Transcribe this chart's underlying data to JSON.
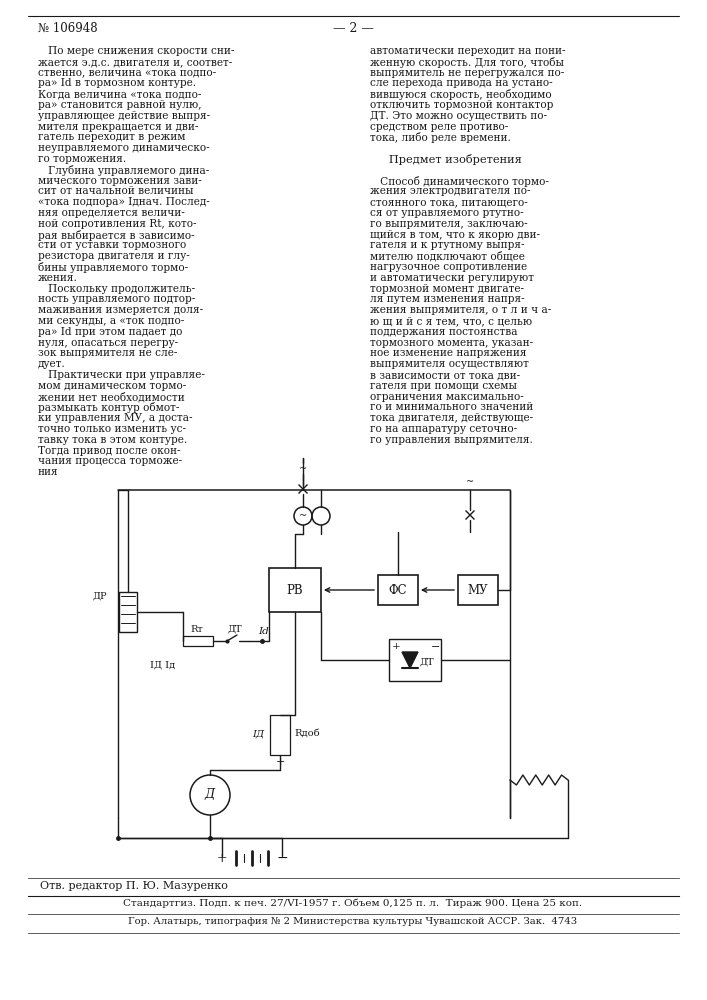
{
  "background_color": "#f5f5f0",
  "text_color": "#1a1a1a",
  "page_number": "№ 106948",
  "page_marker": "— 2 —",
  "col1_lines": [
    "   По мере снижения скорости сни-",
    "жается э.д.с. двигателя и, соответ-",
    "ственно, величина «тока подпо-",
    "ра» Id в тормозном контуре.",
    "Когда величина «тока подпо-",
    "ра» становится равной нулю,",
    "управляющее действие выпря-",
    "мителя прекращается и дви-",
    "гатель переходит в режим",
    "неуправляемого динамическо-",
    "го торможения.",
    "   Глубина управляемого дина-",
    "мического торможения зави-",
    "сит от начальной величины",
    "«тока подпора» Iднач. Послед-",
    "няя определяется величи-",
    "ной сопротивления Rt, кото-",
    "рая выбирается в зависимо-",
    "сти от уставки тормозного",
    "резистора двигателя и глу-",
    "бины управляемого тормо-",
    "жения.",
    "   Поскольку продолжитель-",
    "ность управляемого подтор-",
    "маживания измеряется доля-",
    "ми секунды, а «ток подпо-",
    "ра» Id при этом падает до",
    "нуля, опасаться перегру-",
    "зок выпрямителя не сле-",
    "дует.",
    "   Практически при управляе-",
    "мом динамическом тормо-",
    "жении нет необходимости",
    "размыкать контур обмот-",
    "ки управления МУ, а доста-",
    "точно только изменить ус-",
    "тавку тока в этом контуре.",
    "Тогда привод после окон-",
    "чания процесса торможе-",
    "ния"
  ],
  "col2_lines": [
    "автоматически переходит на пони-",
    "женную скорость. Для того, чтобы",
    "выпрямитель не перегружался по-",
    "сле перехода привода на устано-",
    "вившуюся скорость, необходимо",
    "отключить тормозной контактор",
    "ДТ. Это можно осуществить по-",
    "средством реле противо-",
    "тока, либо реле времени.",
    "",
    "   Предмет изобретения",
    "",
    "   Способ динамического тормо-",
    "жения электродвигателя по-",
    "стоянного тока, питающего-",
    "ся от управляемого ртутно-",
    "го выпрямителя, заключаю-",
    "щийся в том, что к якорю дви-",
    "гателя и к ртутному выпря-",
    "мителю подключают общее",
    "нагрузочное сопротивление",
    "и автоматически регулируют",
    "тормозной момент двигате-",
    "ля путем изменения напря-",
    "жения выпрямителя, о т л и ч а-",
    "ю щ и й с я тем, что, с целью",
    "поддержания постоянства",
    "тормозного момента, указан-",
    "ное изменение напряжения",
    "выпрямителя осуществляют",
    "в зависимости от тока дви-",
    "гателя при помощи схемы",
    "ограничения максимально-",
    "го и минимального значений",
    "тока двигателя, действующе-",
    "го на аппаратуру сеточно-",
    "го управления выпрямителя."
  ],
  "footer_editor": "Отв. редактор П. Ю. Мазуренко",
  "footer_line1": "Стандартгиз. Подп. к печ. 27/VI-1957 г. Объем 0,125 п. л.  Тираж 900. Цена 25 коп.",
  "footer_line2": "Гор. Алатырь, типография № 2 Министерства культуры Чувашской АССР. Зак.  4743"
}
